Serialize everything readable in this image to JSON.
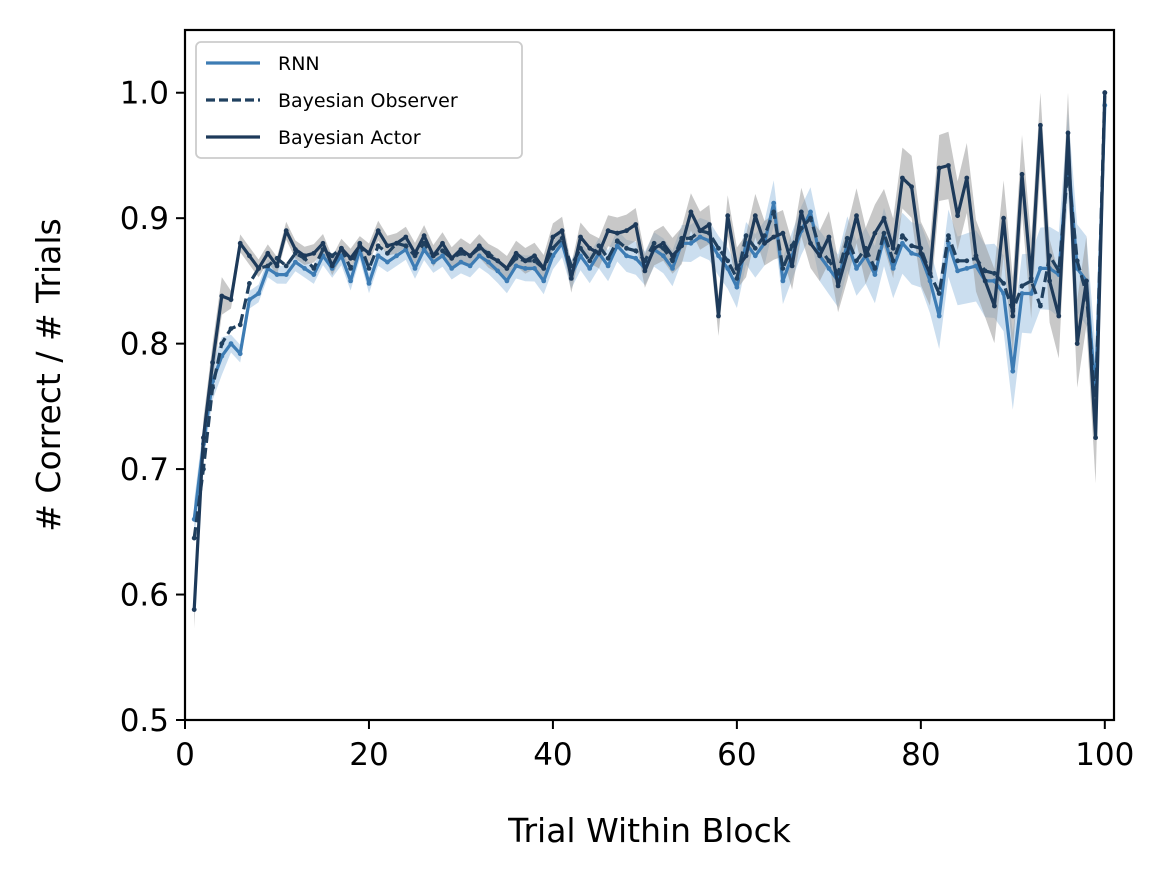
{
  "chart_data": {
    "type": "line",
    "title": "",
    "xlabel": "Trial Within Block",
    "ylabel": "# Correct / # Trials",
    "xlim": [
      0,
      101
    ],
    "ylim": [
      0.5,
      1.05
    ],
    "xticks": [
      0,
      20,
      40,
      60,
      80,
      100
    ],
    "yticks": [
      0.5,
      0.6,
      0.7,
      0.8,
      0.9,
      1.0
    ],
    "xtick_labels": [
      "0",
      "20",
      "40",
      "60",
      "80",
      "100"
    ],
    "ytick_labels": [
      "0.5",
      "0.6",
      "0.7",
      "0.8",
      "0.9",
      "1.0"
    ],
    "grid": false,
    "legend_position": "top-left",
    "x": [
      1,
      2,
      3,
      4,
      5,
      6,
      7,
      8,
      9,
      10,
      11,
      12,
      13,
      14,
      15,
      16,
      17,
      18,
      19,
      20,
      21,
      22,
      23,
      24,
      25,
      26,
      27,
      28,
      29,
      30,
      31,
      32,
      33,
      34,
      35,
      36,
      37,
      38,
      39,
      40,
      41,
      42,
      43,
      44,
      45,
      46,
      47,
      48,
      49,
      50,
      51,
      52,
      53,
      54,
      55,
      56,
      57,
      58,
      59,
      60,
      61,
      62,
      63,
      64,
      65,
      66,
      67,
      68,
      69,
      70,
      71,
      72,
      73,
      74,
      75,
      76,
      77,
      78,
      79,
      80,
      81,
      82,
      83,
      84,
      85,
      86,
      87,
      88,
      89,
      90,
      91,
      92,
      93,
      94,
      95,
      96,
      97,
      98,
      99,
      100
    ],
    "series": [
      {
        "name": "RNN",
        "color": "#3d7cb4",
        "band_color": "#b9d3ea",
        "dash": "solid",
        "values": [
          0.66,
          0.72,
          0.77,
          0.79,
          0.8,
          0.792,
          0.835,
          0.84,
          0.86,
          0.855,
          0.855,
          0.865,
          0.86,
          0.855,
          0.87,
          0.86,
          0.87,
          0.85,
          0.875,
          0.848,
          0.87,
          0.865,
          0.87,
          0.875,
          0.86,
          0.875,
          0.865,
          0.87,
          0.86,
          0.865,
          0.862,
          0.87,
          0.865,
          0.858,
          0.85,
          0.862,
          0.86,
          0.86,
          0.85,
          0.87,
          0.88,
          0.855,
          0.87,
          0.86,
          0.872,
          0.862,
          0.878,
          0.87,
          0.868,
          0.86,
          0.875,
          0.87,
          0.86,
          0.88,
          0.88,
          0.885,
          0.882,
          0.87,
          0.86,
          0.845,
          0.88,
          0.87,
          0.88,
          0.912,
          0.85,
          0.87,
          0.89,
          0.905,
          0.87,
          0.86,
          0.85,
          0.88,
          0.86,
          0.87,
          0.855,
          0.885,
          0.86,
          0.88,
          0.872,
          0.87,
          0.85,
          0.822,
          0.88,
          0.858,
          0.86,
          0.862,
          0.85,
          0.85,
          0.84,
          0.778,
          0.84,
          0.84,
          0.86,
          0.86,
          0.855,
          0.95,
          0.86,
          0.85,
          0.76,
          0.99
        ]
      },
      {
        "name": "Bayesian Observer",
        "color": "#20405f",
        "dash": "dashed",
        "values": [
          0.645,
          0.7,
          0.765,
          0.8,
          0.812,
          0.815,
          0.848,
          0.86,
          0.862,
          0.868,
          0.862,
          0.872,
          0.868,
          0.86,
          0.875,
          0.87,
          0.876,
          0.86,
          0.88,
          0.86,
          0.878,
          0.872,
          0.88,
          0.878,
          0.87,
          0.88,
          0.87,
          0.874,
          0.868,
          0.872,
          0.87,
          0.876,
          0.872,
          0.866,
          0.86,
          0.868,
          0.866,
          0.866,
          0.86,
          0.876,
          0.884,
          0.862,
          0.876,
          0.866,
          0.878,
          0.868,
          0.882,
          0.876,
          0.874,
          0.866,
          0.88,
          0.876,
          0.866,
          0.884,
          0.884,
          0.89,
          0.888,
          0.876,
          0.866,
          0.852,
          0.886,
          0.876,
          0.886,
          0.905,
          0.86,
          0.878,
          0.892,
          0.9,
          0.876,
          0.866,
          0.856,
          0.884,
          0.866,
          0.876,
          0.86,
          0.888,
          0.866,
          0.886,
          0.878,
          0.876,
          0.856,
          0.84,
          0.886,
          0.866,
          0.866,
          0.868,
          0.858,
          0.856,
          0.848,
          0.826,
          0.846,
          0.85,
          0.83,
          0.87,
          0.858,
          0.94,
          0.866,
          0.84,
          0.75,
          1.0
        ]
      },
      {
        "name": "Bayesian Actor",
        "color": "#1d3a5a",
        "band_color": "#9a9a9a",
        "dash": "solid",
        "values": [
          0.588,
          0.725,
          0.785,
          0.838,
          0.835,
          0.88,
          0.87,
          0.86,
          0.872,
          0.862,
          0.89,
          0.875,
          0.87,
          0.872,
          0.88,
          0.862,
          0.876,
          0.868,
          0.878,
          0.872,
          0.89,
          0.878,
          0.88,
          0.885,
          0.872,
          0.886,
          0.87,
          0.88,
          0.868,
          0.875,
          0.87,
          0.878,
          0.87,
          0.866,
          0.86,
          0.872,
          0.866,
          0.87,
          0.86,
          0.885,
          0.89,
          0.852,
          0.885,
          0.876,
          0.872,
          0.89,
          0.888,
          0.89,
          0.895,
          0.858,
          0.876,
          0.88,
          0.87,
          0.878,
          0.905,
          0.89,
          0.895,
          0.822,
          0.902,
          0.86,
          0.87,
          0.902,
          0.88,
          0.885,
          0.888,
          0.862,
          0.905,
          0.88,
          0.87,
          0.885,
          0.846,
          0.872,
          0.902,
          0.87,
          0.888,
          0.9,
          0.876,
          0.932,
          0.925,
          0.872,
          0.856,
          0.94,
          0.942,
          0.902,
          0.932,
          0.87,
          0.85,
          0.83,
          0.9,
          0.822,
          0.935,
          0.852,
          0.974,
          0.85,
          0.822,
          0.968,
          0.8,
          0.85,
          0.725,
          1.0
        ]
      }
    ]
  }
}
